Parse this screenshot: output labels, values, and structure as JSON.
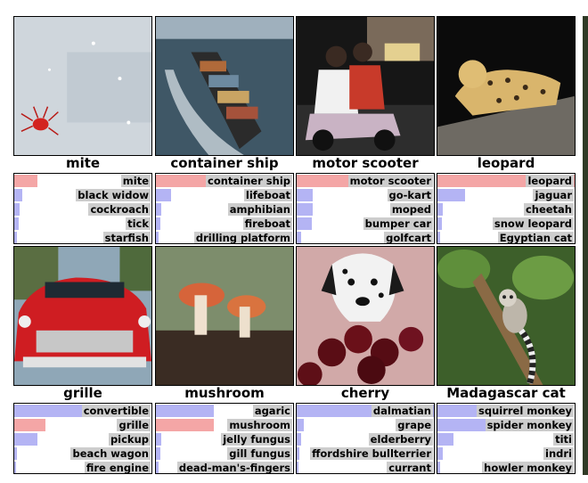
{
  "colors": {
    "correct": "#f4a6a6",
    "other": "#b4b4f4",
    "label_bg": "#cdcdcd"
  },
  "figure": {
    "examples": [
      {
        "image": "red mite on snow",
        "truth": "mite",
        "predictions": [
          {
            "label": "mite",
            "p": 0.17,
            "correct": true
          },
          {
            "label": "black widow",
            "p": 0.06,
            "correct": false
          },
          {
            "label": "cockroach",
            "p": 0.04,
            "correct": false
          },
          {
            "label": "tick",
            "p": 0.03,
            "correct": false
          },
          {
            "label": "starfish",
            "p": 0.02,
            "correct": false
          }
        ]
      },
      {
        "image": "container ship at sea",
        "truth": "container ship",
        "predictions": [
          {
            "label": "container ship",
            "p": 0.96,
            "correct": true
          },
          {
            "label": "lifeboat",
            "p": 0.11,
            "correct": false
          },
          {
            "label": "amphibian",
            "p": 0.04,
            "correct": false
          },
          {
            "label": "fireboat",
            "p": 0.03,
            "correct": false
          },
          {
            "label": "drilling platform",
            "p": 0.02,
            "correct": false
          }
        ]
      },
      {
        "image": "people riding a scooter",
        "truth": "motor scooter",
        "predictions": [
          {
            "label": "motor scooter",
            "p": 0.53,
            "correct": true
          },
          {
            "label": "go-kart",
            "p": 0.12,
            "correct": false
          },
          {
            "label": "moped",
            "p": 0.12,
            "correct": false
          },
          {
            "label": "bumper car",
            "p": 0.11,
            "correct": false
          },
          {
            "label": "golfcart",
            "p": 0.03,
            "correct": false
          }
        ]
      },
      {
        "image": "leopard on a branch",
        "truth": "leopard",
        "predictions": [
          {
            "label": "leopard",
            "p": 1.0,
            "correct": true
          },
          {
            "label": "jaguar",
            "p": 0.2,
            "correct": false
          },
          {
            "label": "cheetah",
            "p": 0.04,
            "correct": false
          },
          {
            "label": "snow leopard",
            "p": 0.03,
            "correct": false
          },
          {
            "label": "Egyptian cat",
            "p": 0.02,
            "correct": false
          }
        ]
      },
      {
        "image": "front of a red vintage car",
        "truth": "grille",
        "predictions": [
          {
            "label": "convertible",
            "p": 0.99,
            "correct": false
          },
          {
            "label": "grille",
            "p": 0.23,
            "correct": true
          },
          {
            "label": "pickup",
            "p": 0.17,
            "correct": false
          },
          {
            "label": "beach wagon",
            "p": 0.02,
            "correct": false
          },
          {
            "label": "fire engine",
            "p": 0.01,
            "correct": false
          }
        ]
      },
      {
        "image": "two mushrooms on a log",
        "truth": "mushroom",
        "predictions": [
          {
            "label": "agaric",
            "p": 0.42,
            "correct": false
          },
          {
            "label": "mushroom",
            "p": 0.42,
            "correct": true
          },
          {
            "label": "jelly fungus",
            "p": 0.04,
            "correct": false
          },
          {
            "label": "gill fungus",
            "p": 0.03,
            "correct": false
          },
          {
            "label": "dead-man's-fingers",
            "p": 0.02,
            "correct": false
          }
        ]
      },
      {
        "image": "dalmatian behind cherries",
        "truth": "cherry",
        "predictions": [
          {
            "label": "dalmatian",
            "p": 1.0,
            "correct": false
          },
          {
            "label": "grape",
            "p": 0.05,
            "correct": false
          },
          {
            "label": "elderberry",
            "p": 0.03,
            "correct": false
          },
          {
            "label": "ffordshire bullterrier",
            "p": 0.02,
            "correct": false
          },
          {
            "label": "currant",
            "p": 0.01,
            "correct": false
          }
        ]
      },
      {
        "image": "lemur in a tree",
        "truth": "Madagascar cat",
        "predictions": [
          {
            "label": "squirrel monkey",
            "p": 0.69,
            "correct": false
          },
          {
            "label": "spider monkey",
            "p": 0.42,
            "correct": false
          },
          {
            "label": "titi",
            "p": 0.12,
            "correct": false
          },
          {
            "label": "indri",
            "p": 0.04,
            "correct": false
          },
          {
            "label": "howler monkey",
            "p": 0.02,
            "correct": false
          }
        ]
      }
    ]
  }
}
